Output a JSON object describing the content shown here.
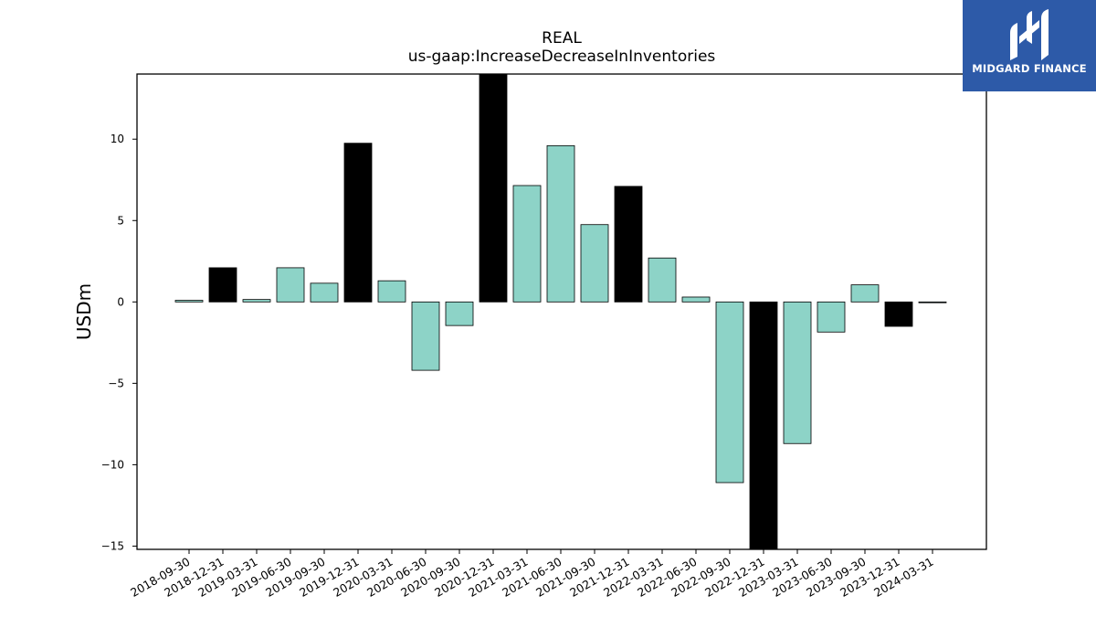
{
  "chart_data": {
    "type": "bar",
    "title": "REAL",
    "subtitle": "us-gaap:IncreaseDecreaseInInventories",
    "ylabel": "USDm",
    "xlabel": "",
    "ylim": [
      -15.2,
      14.0
    ],
    "yticks": [
      -15,
      -10,
      -5,
      0,
      5,
      10
    ],
    "grid": false,
    "categories": [
      "2018-09-30",
      "2018-12-31",
      "2019-03-31",
      "2019-06-30",
      "2019-09-30",
      "2019-12-31",
      "2020-03-31",
      "2020-06-30",
      "2020-09-30",
      "2020-12-31",
      "2021-03-31",
      "2021-06-30",
      "2021-09-30",
      "2021-12-31",
      "2022-03-31",
      "2022-06-30",
      "2022-09-30",
      "2022-12-31",
      "2023-03-31",
      "2023-06-30",
      "2023-09-30",
      "2023-12-31",
      "2024-03-31"
    ],
    "values": [
      0.1,
      2.1,
      0.15,
      2.1,
      1.15,
      9.75,
      1.3,
      -4.2,
      -1.45,
      14.0,
      7.15,
      9.6,
      4.75,
      7.1,
      2.7,
      0.3,
      -11.1,
      -15.2,
      -8.7,
      -1.85,
      1.05,
      -1.5,
      -0.05
    ],
    "colors": [
      "#8dd3c7",
      "#000000",
      "#8dd3c7",
      "#8dd3c7",
      "#8dd3c7",
      "#000000",
      "#8dd3c7",
      "#8dd3c7",
      "#8dd3c7",
      "#000000",
      "#8dd3c7",
      "#8dd3c7",
      "#8dd3c7",
      "#000000",
      "#8dd3c7",
      "#8dd3c7",
      "#8dd3c7",
      "#000000",
      "#8dd3c7",
      "#8dd3c7",
      "#8dd3c7",
      "#000000",
      "#8dd3c7"
    ]
  },
  "logo": {
    "text": "MIDGARD FINANCE"
  },
  "colors": {
    "logo_bg": "#2d5aa8"
  }
}
